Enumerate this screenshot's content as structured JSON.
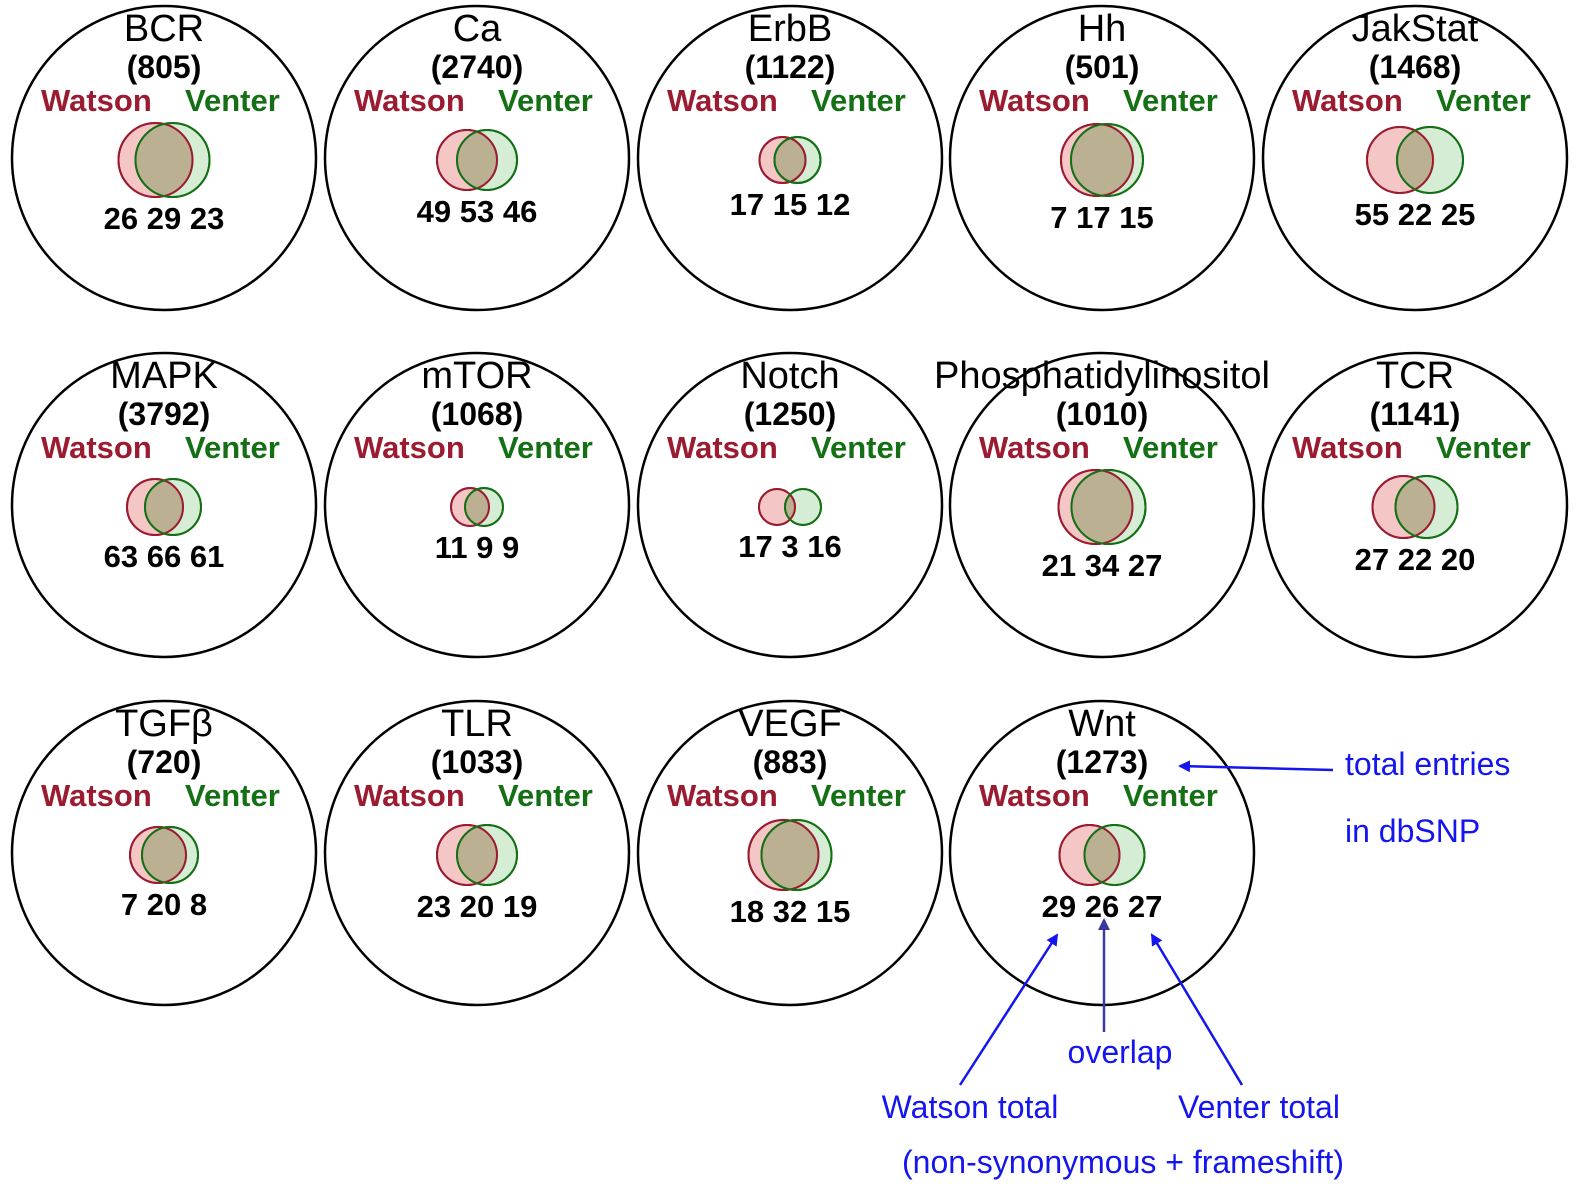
{
  "colors": {
    "watson": "#9b1b30",
    "venter": "#157015",
    "watson_fill": "#f2b3b3",
    "venter_fill": "#b3dfb3",
    "annotation": "#1515ee"
  },
  "legend": {
    "watson_label": "Watson",
    "venter_label": "Venter"
  },
  "pathways": [
    {
      "name": "BCR",
      "total": "(805)",
      "counts": "26 29 23",
      "watson": 26,
      "overlap": 29,
      "venter": 23
    },
    {
      "name": "Ca",
      "total": "(2740)",
      "counts": "49 53 46",
      "watson": 49,
      "overlap": 53,
      "venter": 46
    },
    {
      "name": "ErbB",
      "total": "(1122)",
      "counts": "17 15 12",
      "watson": 17,
      "overlap": 15,
      "venter": 12
    },
    {
      "name": "Hh",
      "total": "(501)",
      "counts": "7 17 15",
      "watson": 7,
      "overlap": 17,
      "venter": 15
    },
    {
      "name": "JakStat",
      "total": "(1468)",
      "counts": "55 22 25",
      "watson": 55,
      "overlap": 22,
      "venter": 25
    },
    {
      "name": "MAPK",
      "total": "(3792)",
      "counts": "63 66 61",
      "watson": 63,
      "overlap": 66,
      "venter": 61
    },
    {
      "name": "mTOR",
      "total": "(1068)",
      "counts": "11 9 9",
      "watson": 11,
      "overlap": 9,
      "venter": 9
    },
    {
      "name": "Notch",
      "total": "(1250)",
      "counts": "17 3 16",
      "watson": 17,
      "overlap": 3,
      "venter": 16
    },
    {
      "name": "Phosphatidylinositol",
      "total": "(1010)",
      "counts": "21 34 27",
      "watson": 21,
      "overlap": 34,
      "venter": 27
    },
    {
      "name": "TCR",
      "total": "(1141)",
      "counts": "27 22 20",
      "watson": 27,
      "overlap": 22,
      "venter": 20
    },
    {
      "name": "TGFβ",
      "total": "(720)",
      "counts": "7 20 8",
      "watson": 7,
      "overlap": 20,
      "venter": 8
    },
    {
      "name": "TLR",
      "total": "(1033)",
      "counts": "23 20 19",
      "watson": 23,
      "overlap": 20,
      "venter": 19
    },
    {
      "name": "VEGF",
      "total": "(883)",
      "counts": "18 32 15",
      "watson": 18,
      "overlap": 32,
      "venter": 15
    },
    {
      "name": "Wnt",
      "total": "(1273)",
      "counts": "29 26 27",
      "watson": 29,
      "overlap": 26,
      "venter": 27
    }
  ],
  "annotations": {
    "total_entries_line1": "total entries",
    "total_entries_line2": "in dbSNP",
    "overlap": "overlap",
    "watson_total": "Watson total",
    "venter_total": "Venter total",
    "footnote": "(non-synonymous + frameshift)"
  }
}
